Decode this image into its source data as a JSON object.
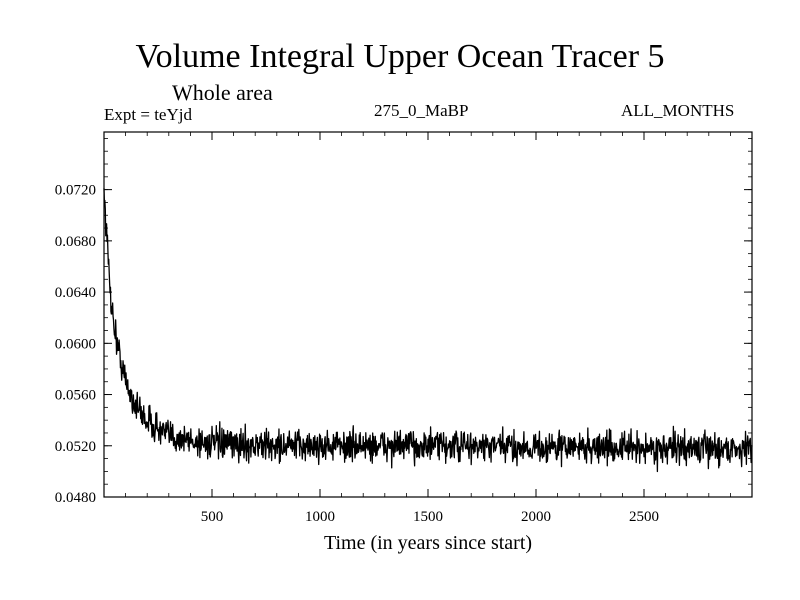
{
  "chart_data": {
    "type": "line",
    "title": "Volume Integral Upper Ocean Tracer 5",
    "subtitle": "Whole area",
    "experiment_label": "Expt = teYjd",
    "period_label": "275_0_MaBP",
    "months_label": "ALL_MONTHS",
    "xlabel": "Time (in years since start)",
    "ylabel": "",
    "xlim": [
      0,
      3000
    ],
    "ylim": [
      0.048,
      0.0765
    ],
    "x_ticks": [
      500,
      1000,
      1500,
      2000,
      2500
    ],
    "x_tick_labels": [
      "500",
      "1000",
      "1500",
      "2000",
      "2500"
    ],
    "y_ticks": [
      0.048,
      0.052,
      0.056,
      0.06,
      0.064,
      0.068,
      0.072
    ],
    "y_tick_labels": [
      "0.0480",
      "0.0520",
      "0.0560",
      "0.0600",
      "0.0640",
      "0.0680",
      "0.0720"
    ],
    "series": [
      {
        "name": "Volume Integral Upper Ocean Tracer 5",
        "color": "#000000",
        "x": [
          0,
          10,
          20,
          30,
          40,
          60,
          80,
          100,
          130,
          160,
          200,
          250,
          300,
          400,
          500,
          600,
          800,
          1000,
          1200,
          1500,
          1800,
          2000,
          2200,
          2500,
          2800,
          3000
        ],
        "values": [
          0.0722,
          0.069,
          0.0665,
          0.064,
          0.0622,
          0.06,
          0.0585,
          0.057,
          0.0557,
          0.0548,
          0.054,
          0.0533,
          0.0528,
          0.0524,
          0.0522,
          0.0521,
          0.052,
          0.052,
          0.052,
          0.052,
          0.0519,
          0.0519,
          0.0519,
          0.0518,
          0.0518,
          0.0518
        ],
        "noise_amplitude": 0.0012
      }
    ]
  }
}
